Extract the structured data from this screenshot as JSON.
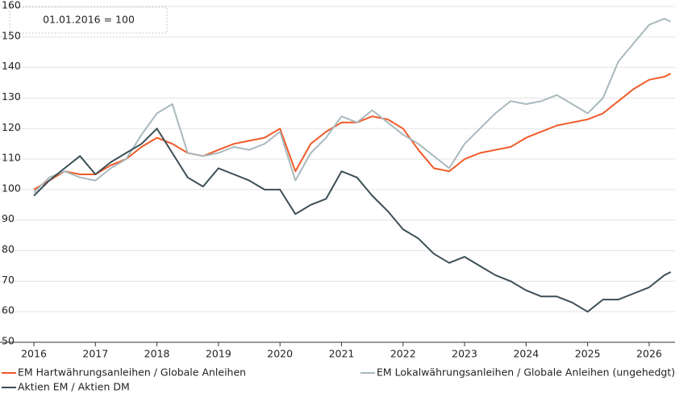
{
  "chart_data": {
    "type": "line",
    "annotation": "01.01.2016 = 100",
    "x": [
      2016.0,
      2016.25,
      2016.5,
      2016.75,
      2017.0,
      2017.25,
      2017.5,
      2017.75,
      2018.0,
      2018.25,
      2018.5,
      2018.75,
      2019.0,
      2019.25,
      2019.5,
      2019.75,
      2020.0,
      2020.25,
      2020.5,
      2020.75,
      2021.0,
      2021.25,
      2021.5,
      2021.75,
      2022.0,
      2022.25,
      2022.5,
      2022.75,
      2023.0,
      2023.25,
      2023.5,
      2023.75,
      2024.0,
      2024.25,
      2024.5,
      2024.75,
      2025.0,
      2025.25,
      2025.5,
      2025.75,
      2026.0,
      2026.25,
      2026.35
    ],
    "series": [
      {
        "name": "EM Hartwährungsanleihen / Globale Anleihen",
        "color": "#f05a28",
        "values": [
          100,
          103,
          106,
          105,
          105,
          108,
          110,
          114,
          117,
          115,
          112,
          111,
          113,
          115,
          116,
          117,
          120,
          106,
          115,
          119,
          122,
          122,
          124,
          123,
          120,
          113,
          107,
          106,
          110,
          112,
          113,
          114,
          117,
          119,
          121,
          122,
          123,
          125,
          129,
          133,
          136,
          137,
          138
        ]
      },
      {
        "name": "EM Lokalwährungsanleihen / Globale Anleihen (ungehedgt)",
        "color": "#a9b9be",
        "values": [
          99,
          104,
          106,
          104,
          103,
          107,
          110,
          118,
          125,
          128,
          112,
          111,
          112,
          114,
          113,
          115,
          119,
          103,
          112,
          117,
          124,
          122,
          126,
          122,
          118,
          115,
          111,
          107,
          115,
          120,
          125,
          129,
          128,
          129,
          131,
          128,
          125,
          130,
          142,
          148,
          154,
          156,
          155
        ]
      },
      {
        "name": "Aktien EM / Aktien DM",
        "color": "#3d4f57",
        "values": [
          98,
          103,
          107,
          111,
          105,
          109,
          112,
          115,
          120,
          112,
          104,
          101,
          107,
          105,
          103,
          100,
          100,
          92,
          95,
          97,
          106,
          104,
          98,
          93,
          87,
          84,
          79,
          76,
          78,
          75,
          72,
          70,
          67,
          65,
          65,
          63,
          60,
          64,
          64,
          66,
          68,
          72,
          73
        ]
      }
    ],
    "xlim": [
      2016,
      2026.42
    ],
    "xticks": [
      2016,
      2017,
      2018,
      2019,
      2020,
      2021,
      2022,
      2023,
      2024,
      2025,
      2026
    ],
    "ylim": [
      50,
      160
    ],
    "yticks": [
      50,
      60,
      70,
      80,
      90,
      100,
      110,
      120,
      130,
      140,
      150,
      160
    ],
    "grid": true,
    "legend": "bottom"
  }
}
